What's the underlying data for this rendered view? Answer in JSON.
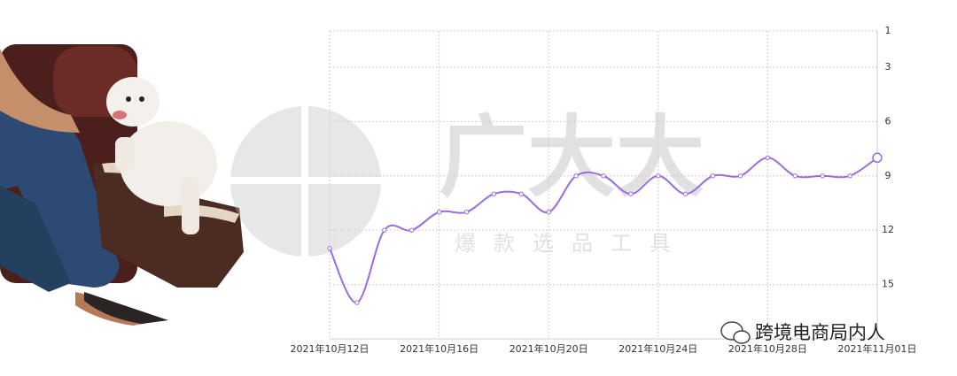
{
  "chart_data": {
    "type": "line",
    "categories": [
      "2021年10月12日",
      null,
      null,
      null,
      "2021年10月16日",
      null,
      null,
      null,
      "2021年10月20日",
      null,
      null,
      null,
      "2021年10月24日",
      null,
      null,
      null,
      "2021年10月28日",
      null,
      null,
      null,
      "2021年11月01日"
    ],
    "values": [
      13,
      16,
      12,
      12,
      11,
      11,
      10,
      10,
      11,
      9,
      9,
      10,
      9,
      10,
      9,
      9,
      8,
      9,
      9,
      9,
      8
    ],
    "color": "#9b6be0",
    "ylim": [
      1,
      18
    ],
    "y_inverted": true,
    "yticks": [
      1,
      3,
      6,
      9,
      12,
      15
    ],
    "grid": true
  },
  "watermark": {
    "brand": "广大大",
    "tagline": "爆款选品工具"
  },
  "footer": {
    "account": "跨境电商局内人"
  }
}
